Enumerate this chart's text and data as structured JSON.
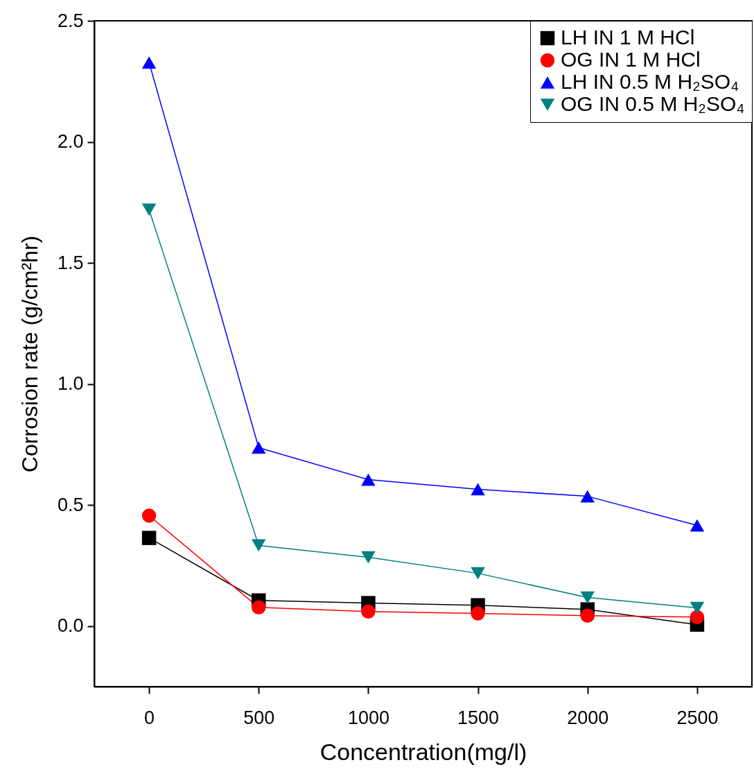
{
  "chart_data": {
    "type": "line",
    "xlabel": "Concentration(mg/l)",
    "ylabel": "Corrosion rate (g/cm²hr)",
    "x": [
      0,
      500,
      1000,
      1500,
      2000,
      2500
    ],
    "series": [
      {
        "name": "LH IN 1 M  HCl",
        "color": "#000000",
        "marker": "square",
        "values": [
          0.364,
          0.106,
          0.095,
          0.086,
          0.069,
          0.006
        ]
      },
      {
        "name": "OG  IN 1 M  HCl",
        "color": "#ff0000",
        "marker": "circle",
        "values": [
          0.456,
          0.077,
          0.06,
          0.052,
          0.043,
          0.037
        ]
      },
      {
        "name": "LH IN 0.5 M  H₂SO₄",
        "color": "#0000ff",
        "marker": "triangle",
        "values": [
          2.328,
          0.737,
          0.605,
          0.565,
          0.536,
          0.416
        ]
      },
      {
        "name": "OG IN 0.5 M H₂SO₄",
        "color": "#008080",
        "marker": "triangle-down",
        "values": [
          1.72,
          0.333,
          0.284,
          0.218,
          0.118,
          0.075
        ]
      }
    ],
    "xlim": [
      -250,
      2750
    ],
    "xticks": [
      0,
      500,
      1000,
      1500,
      2000,
      2500
    ],
    "ylim": [
      -0.25,
      2.5
    ],
    "yticks": [
      {
        "value": 0,
        "label": "0.0"
      },
      0.5,
      {
        "value": 1,
        "label": "1.0"
      },
      1.5,
      {
        "value": 2,
        "label": "2.0"
      },
      2.5
    ],
    "grid": false,
    "legend": "top right"
  }
}
